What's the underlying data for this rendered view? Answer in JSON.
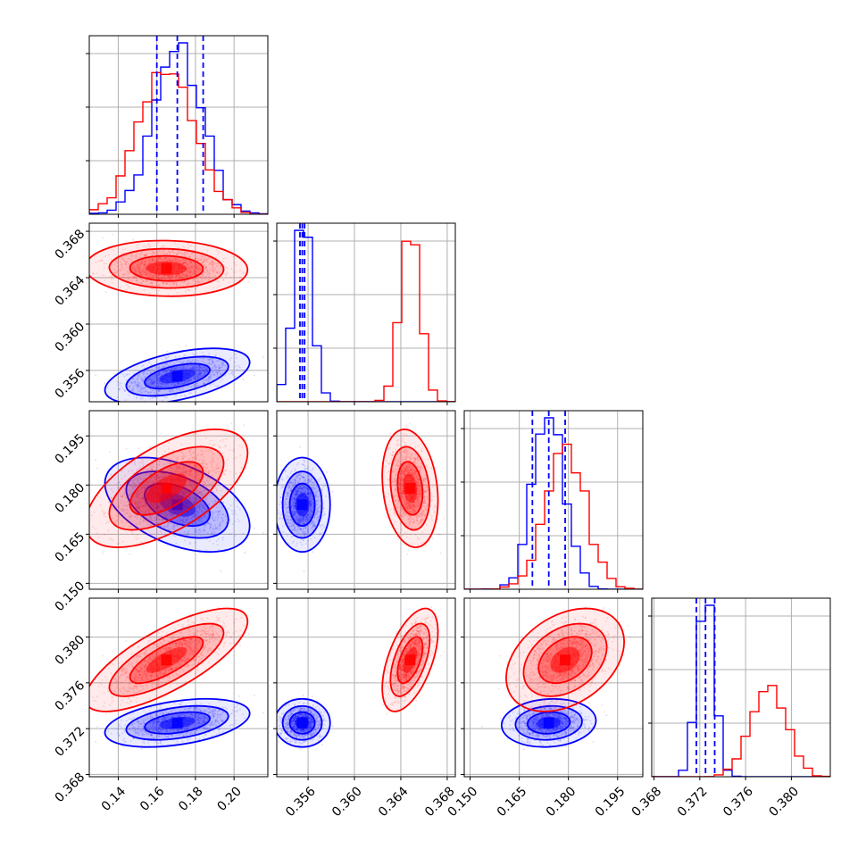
{
  "chart_data": {
    "type": "corner",
    "title": "",
    "colors": {
      "series_a": "#0000ff",
      "series_b": "#ff0000",
      "grid": "#b0b0b0",
      "axis": "#000000"
    },
    "series": [
      {
        "color": "#0000ff",
        "mean": [
          0.1706,
          0.3555,
          0.174,
          0.3725
        ],
        "sd": [
          0.0125,
          0.0008,
          0.0048,
          0.0007
        ],
        "correlation": [
          [
            1,
            0.5,
            -0.45,
            0.4
          ],
          [
            0.5,
            1,
            0,
            0
          ],
          [
            -0.45,
            0,
            1,
            0.1
          ],
          [
            0.4,
            0,
            0.1,
            1
          ]
        ],
        "quantiles": [
          [
            0.16,
            0.1706,
            0.184
          ],
          [
            0.3553,
            0.3555,
            0.3557
          ],
          [
            0.169,
            0.174,
            0.179
          ],
          [
            0.3717,
            0.3725,
            0.3733
          ]
        ]
      },
      {
        "color": "#ff0000",
        "mean": [
          0.165,
          0.3648,
          0.179,
          0.378
        ],
        "sd": [
          0.014,
          0.0008,
          0.006,
          0.0015
        ],
        "correlation": [
          [
            1,
            -0.05,
            0.6,
            0.75
          ],
          [
            -0.05,
            1,
            -0.2,
            0.55
          ],
          [
            0.6,
            -0.2,
            1,
            0.35
          ],
          [
            0.75,
            0.55,
            0.35,
            1
          ]
        ]
      }
    ],
    "quantile_lines": {
      "series": 0,
      "style": "dashed"
    },
    "dimensions": [
      {
        "range": [
          0.125,
          0.2175
        ],
        "ticks": [
          "0.14",
          "0.16",
          "0.18",
          "0.20"
        ],
        "tick_values": [
          0.14,
          0.16,
          0.18,
          0.2
        ]
      },
      {
        "range": [
          0.3533,
          0.3687
        ],
        "ticks": [
          "0.356",
          "0.360",
          "0.364",
          "0.368"
        ],
        "tick_values": [
          0.356,
          0.36,
          0.364,
          0.368
        ]
      },
      {
        "range": [
          0.1482,
          0.2027
        ],
        "ticks": [
          "0.150",
          "0.165",
          "0.180",
          "0.195"
        ],
        "tick_values": [
          0.15,
          0.165,
          0.18,
          0.195
        ]
      },
      {
        "range": [
          0.3678,
          0.3834
        ],
        "ticks": [
          "0.368",
          "0.372",
          "0.376",
          "0.380"
        ],
        "tick_values": [
          0.368,
          0.372,
          0.376,
          0.38
        ]
      }
    ],
    "xlabels": [
      "",
      "",
      "",
      ""
    ],
    "ylabels": [
      "",
      "",
      "",
      ""
    ],
    "grid": true,
    "contour_levels": [
      0.393,
      0.865,
      0.989
    ],
    "samples_per_series": 2500
  }
}
